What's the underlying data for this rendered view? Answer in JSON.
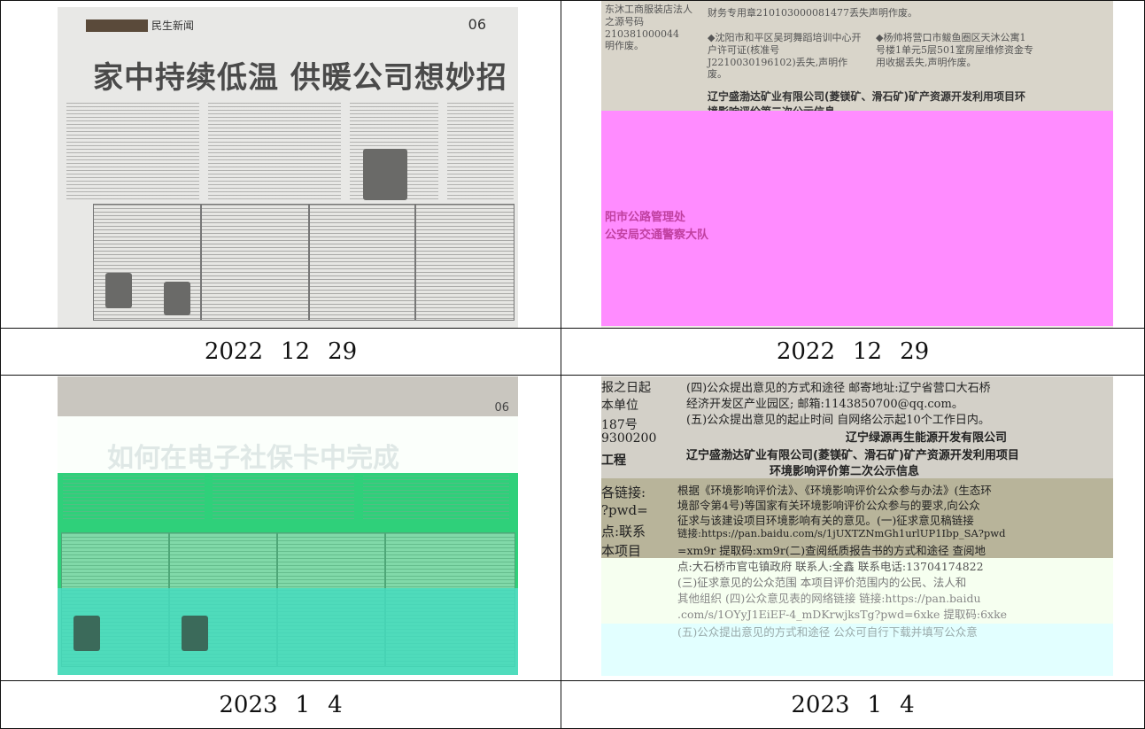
{
  "cells": [
    {
      "caption": {
        "year": "2022",
        "month": "12",
        "day": "29"
      }
    },
    {
      "caption": {
        "year": "2022",
        "month": "12",
        "day": "29"
      }
    },
    {
      "caption": {
        "year": "2023",
        "month": "1",
        "day": "4"
      }
    },
    {
      "caption": {
        "year": "2023",
        "month": "1",
        "day": "4"
      }
    }
  ],
  "photo1": {
    "section": "民生新闻",
    "page": "06",
    "headline": "家中持续低温  供暖公司想妙招"
  },
  "photo2": {
    "company_title": "辽宁盛渤达矿业有限公司(菱镁矿、滑石矿)矿产资源开发利用项目环境影响评价第二次公示信息",
    "line1": "财务专用章210103000081477丢失声明作废。",
    "line2": "◆沈阳市和平区吴珂舞蹈培训中心开户许可证(核准号J2210030196102)丢失,声明作废。",
    "line3": "◆杨帅将营口市鲅鱼圈区天沐公寓1号楼1单元5层501室房屋维修资金专用收据丢失,声明作废。",
    "line4": "阳市公路管理处",
    "line5": "公安局交通警察大队"
  },
  "photo3": {
    "headline": "如何在电子社保卡中完成",
    "page": "06"
  },
  "photo4": {
    "l1": "(四)公众提出意见的方式和途径 邮寄地址:辽宁省营口大石桥",
    "l2": "经济开发区产业园区;  邮箱:1143850700@qq.com。",
    "l3": "(五)公众提出意见的起止时间  自网络公示起10个工作日内。",
    "l4": "辽宁绿源再生能源开发有限公司",
    "l5": "辽宁盛渤达矿业有限公司(菱镁矿、滑石矿)矿产资源开发利用项目",
    "l6": "环境影响评价第二次公示信息",
    "l7": "根据《环境影响评价法》、《环境影响评价公众参与办法》(生态环",
    "l8": "境部令第4号)等国家有关环境影响评价公众参与的要求,向公众",
    "l9": "征求与该建设项目环境影响有关的意见。(一)征求意见稿链接",
    "l10": "链接:https://pan.baidu.com/s/1jUXTZNmGh1urlUP1Ibp_SA?pwd",
    "l11": "=xm9r 提取码:xm9r(二)查阅纸质报告书的方式和途径 查阅地",
    "l12": "点:大石桥市官屯镇政府 联系人:全鑫  联系电话:13704174822",
    "l13": "(三)征求意见的公众范围 本项目评价范围内的公民、法人和",
    "l14": "其他组织 (四)公众意见表的网络链接 链接:https://pan.baidu",
    "l15": ".com/s/1OYyJ1EiEF-4_mDKrwjksTg?pwd=6xke 提取码:6xke",
    "l16": "(五)公众提出意见的方式和途径 公众可自行下载并填写公众意",
    "left1": "报之日起",
    "left2": "本单位",
    "left3": "187号",
    "left4": "9300200",
    "left5": "工程",
    "left6": "各链接:",
    "left7": "?pwd=",
    "left8": "点:联系",
    "left9": "本项目"
  }
}
